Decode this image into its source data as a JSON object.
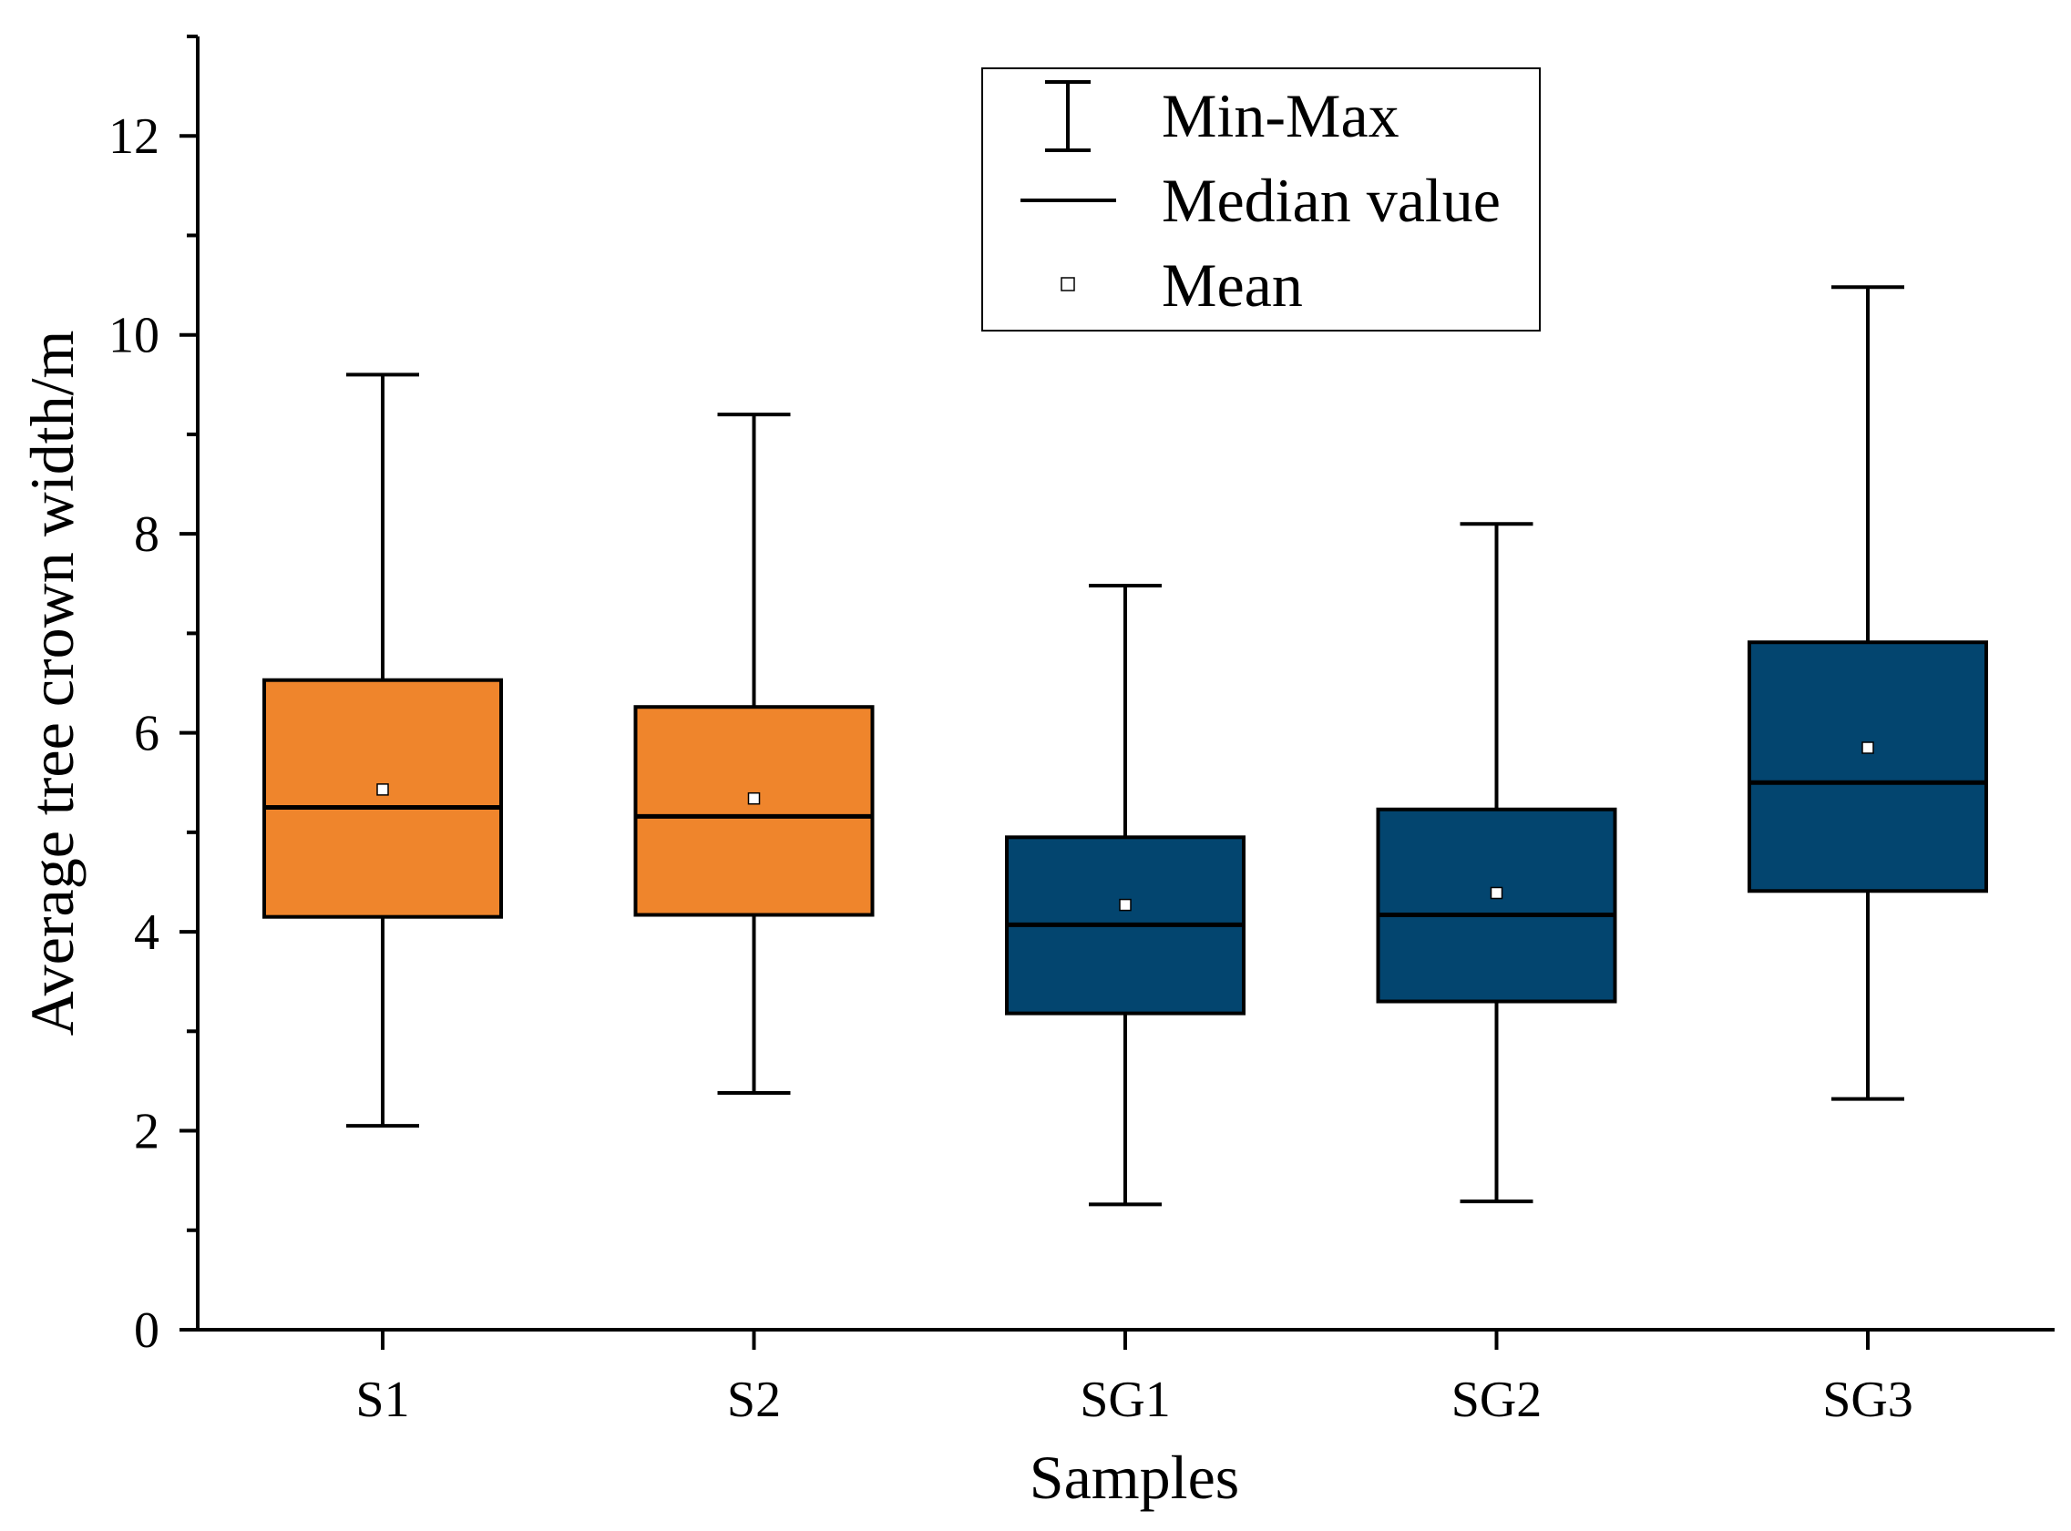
{
  "chart_data": {
    "type": "box",
    "xlabel": "Samples",
    "ylabel": "Average tree crown width/m",
    "ylim": [
      0,
      13
    ],
    "yticks": [
      0,
      2,
      4,
      6,
      8,
      10,
      12
    ],
    "y_minor_step": 1,
    "categories": [
      "S1",
      "S2",
      "SG1",
      "SG2",
      "SG3"
    ],
    "series": [
      {
        "name": "S1",
        "min": 2.05,
        "q1": 4.15,
        "median": 5.25,
        "q3": 6.53,
        "max": 9.6,
        "mean": 5.43,
        "color": "#ef852c"
      },
      {
        "name": "S2",
        "min": 2.38,
        "q1": 4.17,
        "median": 5.16,
        "q3": 6.26,
        "max": 9.2,
        "mean": 5.34,
        "color": "#ef852c"
      },
      {
        "name": "SG1",
        "min": 1.26,
        "q1": 3.18,
        "median": 4.07,
        "q3": 4.95,
        "max": 7.48,
        "mean": 4.27,
        "color": "#03456f"
      },
      {
        "name": "SG2",
        "min": 1.29,
        "q1": 3.3,
        "median": 4.17,
        "q3": 5.23,
        "max": 8.1,
        "mean": 4.39,
        "color": "#03456f"
      },
      {
        "name": "SG3",
        "min": 2.32,
        "q1": 4.41,
        "median": 5.5,
        "q3": 6.91,
        "max": 10.48,
        "mean": 5.85,
        "color": "#03456f"
      }
    ],
    "legend": {
      "position": "top-center",
      "entries": [
        {
          "label": "Min-Max",
          "symbol": "whisker"
        },
        {
          "label": "Median value",
          "symbol": "line"
        },
        {
          "label": "Mean",
          "symbol": "square"
        }
      ]
    }
  }
}
